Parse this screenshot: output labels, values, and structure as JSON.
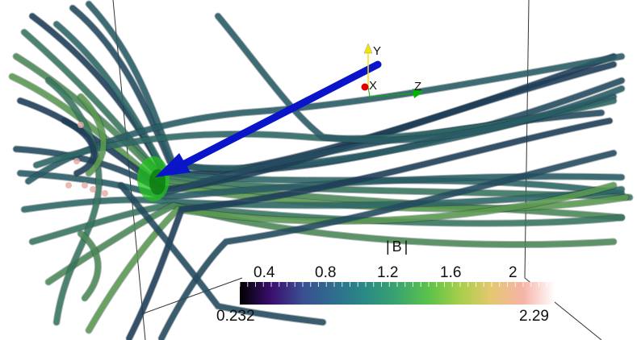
{
  "scene": {
    "background": "#ffffff",
    "stream_colors": [
      "#1f3f5c",
      "#244d63",
      "#2a5f68",
      "#2f6b6a",
      "#3b7a63",
      "#4d8e5a",
      "#5e9f52"
    ],
    "arrow_color": "#0a14c8",
    "blob_color": "#22c21e",
    "wireframe_color": "#333333"
  },
  "orientation_axes": {
    "x_label": "X",
    "y_label": "Y",
    "z_label": "Z",
    "x_color": "#e00000",
    "y_color": "#f2e600",
    "z_color": "#00b400"
  },
  "scalar_bar": {
    "title": "|B|",
    "range_min": "0.232",
    "range_max": "2.29",
    "tick_labels": [
      "0.4",
      "0.8",
      "1.2",
      "1.6",
      "2"
    ],
    "colormap": [
      "#000000",
      "#3b0f6f",
      "#3a4f92",
      "#2f6e8e",
      "#2a8a86",
      "#3aa56e",
      "#5cc24b",
      "#a7cf4a",
      "#e6c770",
      "#f6b3a8",
      "#ffffff"
    ]
  }
}
